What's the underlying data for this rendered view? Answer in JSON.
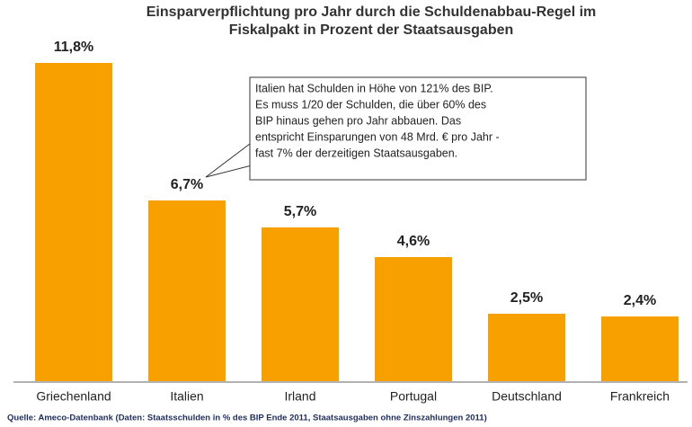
{
  "chart_data": {
    "type": "bar",
    "title": [
      "Einsparverpflichtung pro Jahr durch die Schuldenabbau-Regel im",
      "Fiskalpakt in Prozent der Staatsausgaben"
    ],
    "categories": [
      "Griechenland",
      "Italien",
      "Irland",
      "Portugal",
      "Deutschland",
      "Frankreich"
    ],
    "values": [
      11.8,
      6.7,
      5.7,
      4.6,
      2.5,
      2.4
    ],
    "value_labels": [
      "11,8%",
      "6,7%",
      "5,7%",
      "4,6%",
      "2,5%",
      "2,4%"
    ],
    "color": "#f7a000",
    "annotation": [
      "Italien hat Schulden in Höhe von 121% des BIP.",
      "Es muss 1/20 der Schulden, die über 60% des",
      "BIP hinaus gehen pro Jahr abbauen. Das",
      "entspricht Einsparungen von 48 Mrd. € pro Jahr -",
      "fast 7% der derzeitigen Staatsausgaben."
    ],
    "source": "Quelle: Ameco-Datenbank (Daten: Staatsschulden in % des BIP Ende 2011, Staatsausgaben ohne Zinszahlungen 2011)"
  }
}
